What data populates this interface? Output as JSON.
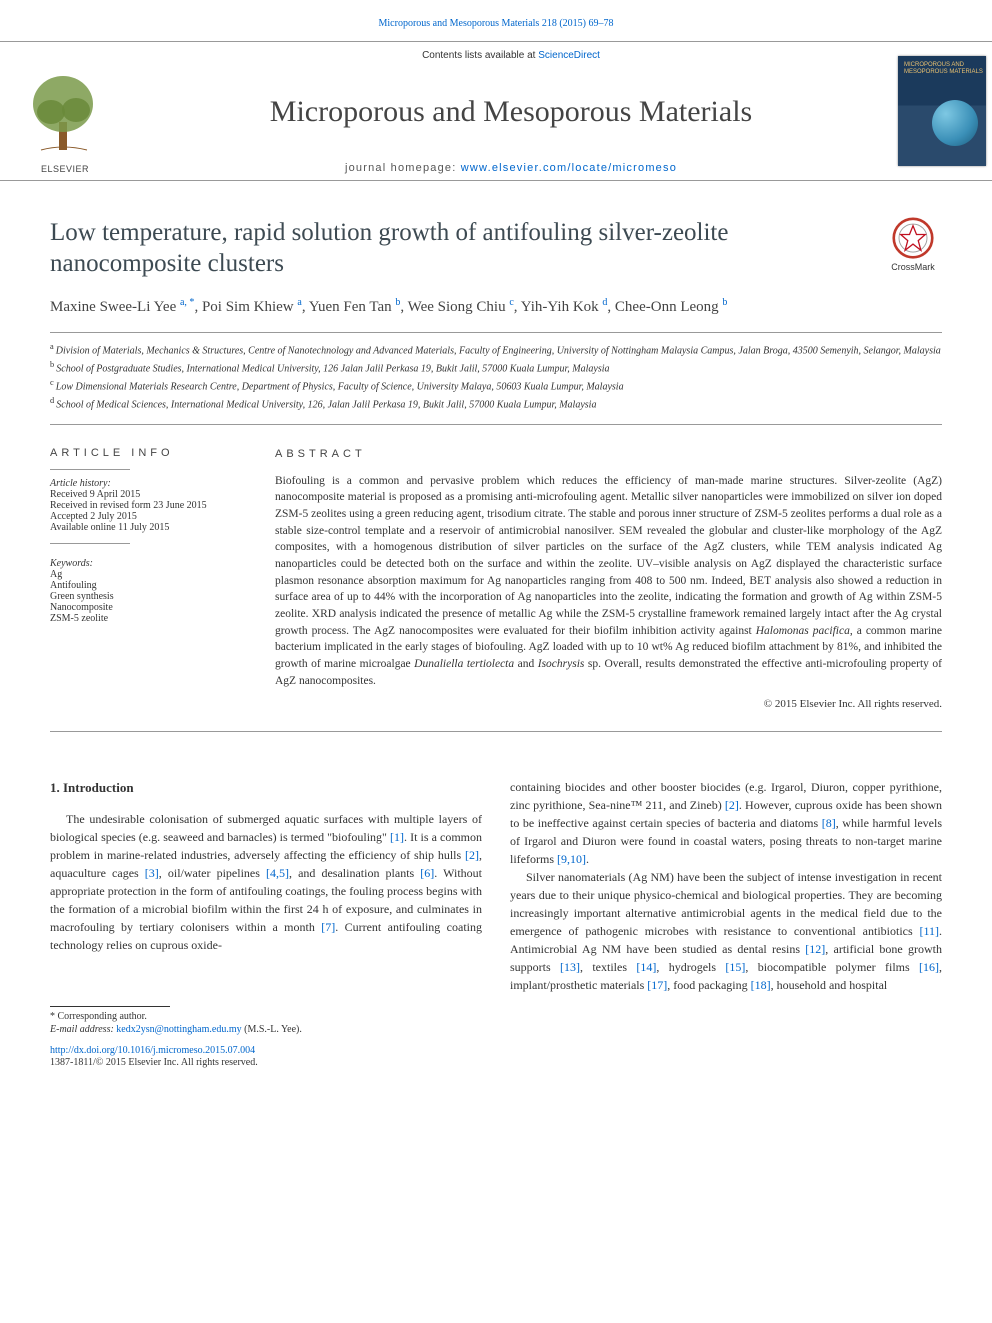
{
  "top_link": "Microporous and Mesoporous Materials 218 (2015) 69–78",
  "header": {
    "contents_prefix": "Contents lists available at ",
    "contents_link": "ScienceDirect",
    "journal_title": "Microporous and Mesoporous Materials",
    "homepage_prefix": "journal homepage: ",
    "homepage_url": "www.elsevier.com/locate/micromeso",
    "publisher_label": "ELSEVIER",
    "cover_label": "MICROPOROUS AND MESOPOROUS MATERIALS"
  },
  "crossmark_label": "CrossMark",
  "article": {
    "title": "Low temperature, rapid solution growth of antifouling silver-zeolite nanocomposite clusters",
    "authors_html": [
      {
        "name": "Maxine Swee-Li Yee",
        "sup": "a, *"
      },
      {
        "name": "Poi Sim Khiew",
        "sup": "a"
      },
      {
        "name": "Yuen Fen Tan",
        "sup": "b"
      },
      {
        "name": "Wee Siong Chiu",
        "sup": "c"
      },
      {
        "name": "Yih-Yih Kok",
        "sup": "d"
      },
      {
        "name": "Chee-Onn Leong",
        "sup": "b"
      }
    ],
    "affiliations": [
      {
        "sup": "a",
        "text": "Division of Materials, Mechanics & Structures, Centre of Nanotechnology and Advanced Materials, Faculty of Engineering, University of Nottingham Malaysia Campus, Jalan Broga, 43500 Semenyih, Selangor, Malaysia"
      },
      {
        "sup": "b",
        "text": "School of Postgraduate Studies, International Medical University, 126 Jalan Jalil Perkasa 19, Bukit Jalil, 57000 Kuala Lumpur, Malaysia"
      },
      {
        "sup": "c",
        "text": "Low Dimensional Materials Research Centre, Department of Physics, Faculty of Science, University Malaya, 50603 Kuala Lumpur, Malaysia"
      },
      {
        "sup": "d",
        "text": "School of Medical Sciences, International Medical University, 126, Jalan Jalil Perkasa 19, Bukit Jalil, 57000 Kuala Lumpur, Malaysia"
      }
    ]
  },
  "article_info": {
    "heading": "ARTICLE INFO",
    "history_label": "Article history:",
    "history": [
      "Received 9 April 2015",
      "Received in revised form 23 June 2015",
      "Accepted 2 July 2015",
      "Available online 11 July 2015"
    ],
    "keywords_label": "Keywords:",
    "keywords": [
      "Ag",
      "Antifouling",
      "Green synthesis",
      "Nanocomposite",
      "ZSM-5 zeolite"
    ]
  },
  "abstract": {
    "heading": "ABSTRACT",
    "text_pre": "Biofouling is a common and pervasive problem which reduces the efficiency of man-made marine structures. Silver-zeolite (AgZ) nanocomposite material is proposed as a promising anti-microfouling agent. Metallic silver nanoparticles were immobilized on silver ion doped ZSM-5 zeolites using a green reducing agent, trisodium citrate. The stable and porous inner structure of ZSM-5 zeolites performs a dual role as a stable size-control template and a reservoir of antimicrobial nanosilver. SEM revealed the globular and cluster-like morphology of the AgZ composites, with a homogenous distribution of silver particles on the surface of the AgZ clusters, while TEM analysis indicated Ag nanoparticles could be detected both on the surface and within the zeolite. UV–visible analysis on AgZ displayed the characteristic surface plasmon resonance absorption maximum for Ag nanoparticles ranging from 408 to 500 nm. Indeed, BET analysis also showed a reduction in surface area of up to 44% with the incorporation of Ag nanoparticles into the zeolite, indicating the formation and growth of Ag within ZSM-5 zeolite. XRD analysis indicated the presence of metallic Ag while the ZSM-5 crystalline framework remained largely intact after the Ag crystal growth process. The AgZ nanocomposites were evaluated for their biofilm inhibition activity against ",
    "italic1": "Halomonas pacifica",
    "text_mid": ", a common marine bacterium implicated in the early stages of biofouling. AgZ loaded with up to 10 wt% Ag reduced biofilm attachment by 81%, and inhibited the growth of marine microalgae ",
    "italic2": "Dunaliella tertiolecta",
    "text_and": " and ",
    "italic3": "Isochrysis",
    "text_post": " sp. Overall, results demonstrated the effective anti-microfouling property of AgZ nanocomposites.",
    "copyright": "© 2015 Elsevier Inc. All rights reserved."
  },
  "intro": {
    "heading": "1.  Introduction",
    "col1_p1_a": "The undesirable colonisation of submerged aquatic surfaces with multiple layers of biological species (e.g. seaweed and barnacles) is termed \"biofouling\" ",
    "r1": "[1]",
    "col1_p1_b": ". It is a common problem in marine-related industries, adversely affecting the efficiency of ship hulls ",
    "r2": "[2]",
    "col1_p1_c": ", aquaculture cages ",
    "r3": "[3]",
    "col1_p1_d": ", oil/water pipelines ",
    "r45": "[4,5]",
    "col1_p1_e": ", and desalination plants ",
    "r6": "[6]",
    "col1_p1_f": ". Without appropriate protection in the form of antifouling coatings, the fouling process begins with the formation of a microbial biofilm within the first 24 h of exposure, and culminates in macrofouling by tertiary colonisers within a month ",
    "r7": "[7]",
    "col1_p1_g": ". Current antifouling coating technology relies on cuprous oxide-",
    "col2_p1_a": "containing biocides and other booster biocides (e.g. Irgarol, Diuron, copper pyrithione, zinc pyrithione, Sea-nine™ 211, and Zineb) ",
    "r2b": "[2]",
    "col2_p1_b": ". However, cuprous oxide has been shown to be ineffective against certain species of bacteria and diatoms ",
    "r8": "[8]",
    "col2_p1_c": ", while harmful levels of Irgarol and Diuron were found in coastal waters, posing threats to non-target marine lifeforms ",
    "r910": "[9,10]",
    "col2_p1_d": ".",
    "col2_p2_a": "Silver nanomaterials (Ag NM) have been the subject of intense investigation in recent years due to their unique physico-chemical and biological properties. They are becoming increasingly important alternative antimicrobial agents in the medical field due to the emergence of pathogenic microbes with resistance to conventional antibiotics ",
    "r11": "[11]",
    "col2_p2_b": ". Antimicrobial Ag NM have been studied as dental resins ",
    "r12": "[12]",
    "col2_p2_c": ", artificial bone growth supports ",
    "r13": "[13]",
    "col2_p2_d": ", textiles ",
    "r14": "[14]",
    "col2_p2_e": ", hydrogels ",
    "r15": "[15]",
    "col2_p2_f": ", biocompatible polymer films ",
    "r16": "[16]",
    "col2_p2_g": ", implant/prosthetic materials ",
    "r17": "[17]",
    "col2_p2_h": ", food packaging ",
    "r18": "[18]",
    "col2_p2_i": ", household and hospital"
  },
  "footer": {
    "corr_label": "* Corresponding author.",
    "email_label": "E-mail address: ",
    "email": "kedx2ysn@nottingham.edu.my",
    "email_suffix": " (M.S.-L. Yee).",
    "doi": "http://dx.doi.org/10.1016/j.micromeso.2015.07.004",
    "issn": "1387-1811/© 2015 Elsevier Inc. All rights reserved."
  }
}
